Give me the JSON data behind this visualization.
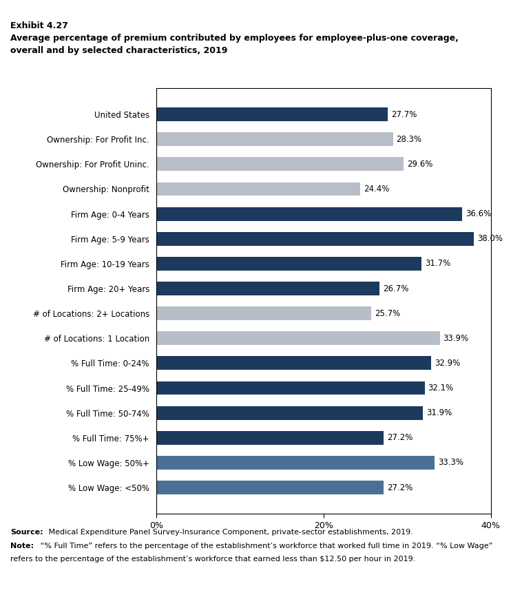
{
  "title_line1": "Exhibit 4.27",
  "title_line2": "Average percentage of premium contributed by employees for employee-plus-one coverage,",
  "title_line3": "overall and by selected characteristics, 2019",
  "source_bold": "Source:",
  "source_rest": " Medical Expenditure Panel Survey-Insurance Component, private-sector establishments, 2019.",
  "note_bold": "Note:",
  "note_rest": " “% Full Time” refers to the percentage of the establishment’s workforce that worked full time in 2019. “% Low Wage”",
  "note_line2": "refers to the percentage of the establishment’s workforce that earned less than $12.50 per hour in 2019.",
  "categories": [
    "United States",
    "Ownership: For Profit Inc.",
    "Ownership: For Profit Uninc.",
    "Ownership: Nonprofit",
    "Firm Age: 0-4 Years",
    "Firm Age: 5-9 Years",
    "Firm Age: 10-19 Years",
    "Firm Age: 20+ Years",
    "# of Locations: 2+ Locations",
    "# of Locations: 1 Location",
    "% Full Time: 0-24%",
    "% Full Time: 25-49%",
    "% Full Time: 50-74%",
    "% Full Time: 75%+",
    "% Low Wage: 50%+",
    "% Low Wage: <50%"
  ],
  "values": [
    27.7,
    28.3,
    29.6,
    24.4,
    36.6,
    38.0,
    31.7,
    26.7,
    25.7,
    33.9,
    32.9,
    32.1,
    31.9,
    27.2,
    33.3,
    27.2
  ],
  "colors": [
    "#1b3a5e",
    "#b8bec7",
    "#b8bec7",
    "#b8bec7",
    "#1b3a5e",
    "#1b3a5e",
    "#1b3a5e",
    "#1b3a5e",
    "#b8bec7",
    "#b8bec7",
    "#1b3a5e",
    "#1b3a5e",
    "#1b3a5e",
    "#1b3a5e",
    "#4a7098",
    "#4a7098"
  ],
  "xlim": [
    0,
    40
  ],
  "xticks": [
    0,
    20,
    40
  ],
  "xticklabels": [
    "0%",
    "20%",
    "40%"
  ],
  "bar_height": 0.55,
  "label_fontsize": 8.5,
  "tick_fontsize": 9,
  "title1_fontsize": 9,
  "title2_fontsize": 9,
  "footnote_fontsize": 8
}
